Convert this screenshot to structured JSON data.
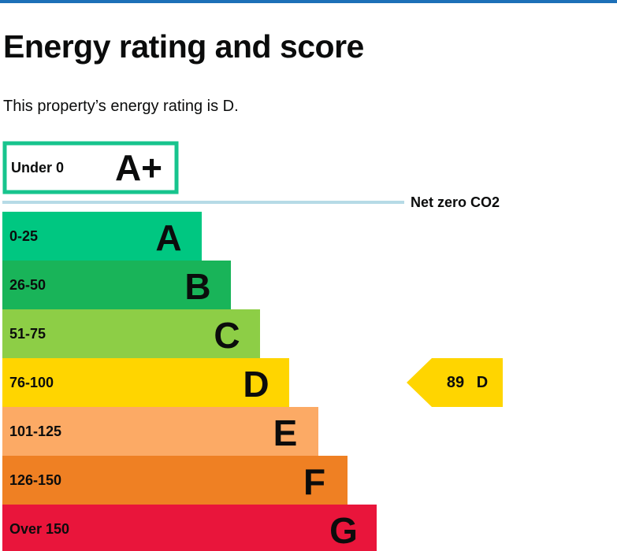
{
  "header": {
    "title": "Energy rating and score"
  },
  "intro": "This property’s energy rating is D.",
  "chart_data": {
    "type": "bar",
    "orientation": "horizontal",
    "title": "",
    "bands": [
      {
        "range": "Under 0",
        "letter": "A+",
        "color": "#ffffff",
        "border_color": "#17c48d",
        "outlined": true
      },
      {
        "range": "0-25",
        "letter": "A",
        "color": "#00c781"
      },
      {
        "range": "26-50",
        "letter": "B",
        "color": "#19b459"
      },
      {
        "range": "51-75",
        "letter": "C",
        "color": "#8dce46"
      },
      {
        "range": "76-100",
        "letter": "D",
        "color": "#ffd500"
      },
      {
        "range": "101-125",
        "letter": "E",
        "color": "#fcaa65"
      },
      {
        "range": "126-150",
        "letter": "F",
        "color": "#ef8023"
      },
      {
        "range": "Over 150",
        "letter": "G",
        "color": "#e9153b"
      }
    ],
    "net_zero_label": "Net zero CO2",
    "net_zero_line_color": "#b6dbe6",
    "current_rating": {
      "score": "89",
      "letter": "D",
      "band_index": 4,
      "color": "#ffd500"
    }
  }
}
